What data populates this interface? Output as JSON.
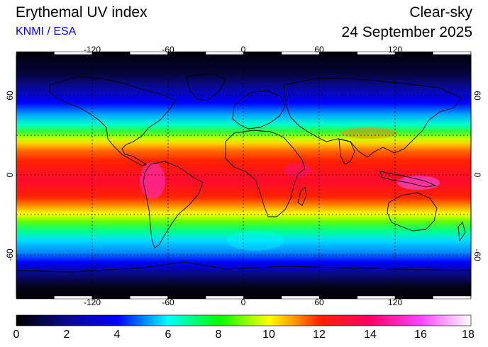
{
  "header": {
    "title": "Erythemal UV index",
    "credit": "KNMI / ESA",
    "condition": "Clear-sky",
    "date": "24 September 2025"
  },
  "map": {
    "lon_ticks": [
      "-120",
      "-60",
      "0",
      "60",
      "120"
    ],
    "lat_ticks": [
      "60",
      "0",
      "-60"
    ],
    "lon_range": [
      -180,
      180
    ],
    "lat_range": [
      -90,
      90
    ],
    "grid": true,
    "colors": {
      "ocean_dark": "#000018",
      "grid": "#000000"
    },
    "features": [
      "coastlines",
      "country-borders",
      "uv-index-field"
    ]
  },
  "colorbar": {
    "labels": [
      "0",
      "2",
      "4",
      "6",
      "8",
      "10",
      "12",
      "14",
      "16",
      "18"
    ],
    "range": [
      0,
      18
    ],
    "stops": [
      {
        "value": 0,
        "color": "#000000"
      },
      {
        "value": 2,
        "color": "#0a0a8c"
      },
      {
        "value": 4,
        "color": "#0000ff"
      },
      {
        "value": 6,
        "color": "#00ffff"
      },
      {
        "value": 8,
        "color": "#00ff00"
      },
      {
        "value": 10,
        "color": "#ffff00"
      },
      {
        "value": 11,
        "color": "#ff9900"
      },
      {
        "value": 12,
        "color": "#ff2200"
      },
      {
        "value": 14,
        "color": "#ff0066"
      },
      {
        "value": 16,
        "color": "#ff44ff"
      },
      {
        "value": 18,
        "color": "#ffffff"
      }
    ]
  }
}
